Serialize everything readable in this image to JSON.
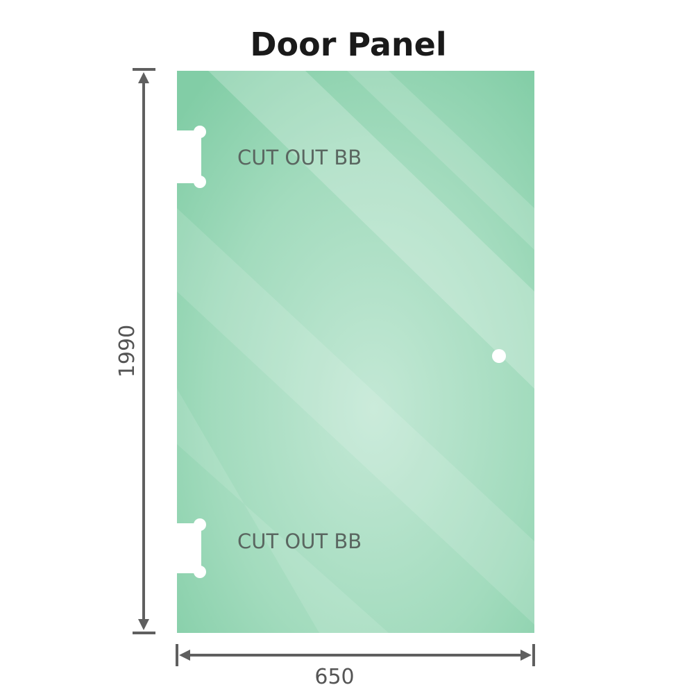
{
  "title": "Door Panel",
  "cutouts": [
    {
      "label": "CUT OUT BB"
    },
    {
      "label": "CUT OUT BB"
    }
  ],
  "dimensions": {
    "height": "1990",
    "width": "650"
  },
  "colors": {
    "glass": "#84cfa8",
    "glass_light": "#c0e6d2",
    "dimension_line": "#5f5f5f"
  }
}
